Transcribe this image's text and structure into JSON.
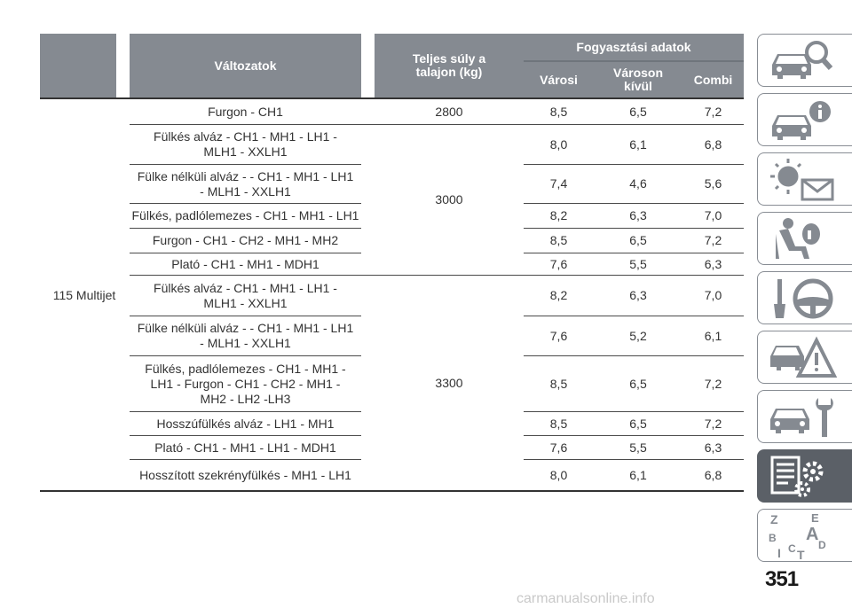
{
  "header": {
    "variants": "Változatok",
    "weight": "Teljes súly a talajon (kg)",
    "consumption": "Fogyasztási adatok",
    "urban": "Városi",
    "extra_urban": "Város­on kívül",
    "combined": "Combi"
  },
  "engine": "115 Multijet",
  "weights": [
    "2800",
    "3000",
    "3300"
  ],
  "rows": [
    {
      "variant": "Furgon - CH1",
      "urban": "8,5",
      "extra": "6,5",
      "combi": "7,2"
    },
    {
      "variant": "Fülkés alváz - CH1 - MH1 - LH1 - MLH1 - XXLH1",
      "urban": "8,0",
      "extra": "6,1",
      "combi": "6,8"
    },
    {
      "variant": "Fülke nélküli alváz - - CH1 - MH1 - LH1 - MLH1 - XXLH1",
      "urban": "7,4",
      "extra": "4,6",
      "combi": "5,6"
    },
    {
      "variant": "Fülkés, padlólemezes - CH1 - MH1 - LH1",
      "urban": "8,2",
      "extra": "6,3",
      "combi": "7,0"
    },
    {
      "variant": "Furgon - CH1 - CH2 - MH1 - MH2",
      "urban": "8,5",
      "extra": "6,5",
      "combi": "7,2"
    },
    {
      "variant": "Plató - CH1 - MH1 - MDH1",
      "urban": "7,6",
      "extra": "5,5",
      "combi": "6,3"
    },
    {
      "variant": "Fülkés alváz - CH1 - MH1 - LH1 - MLH1 - XXLH1",
      "urban": "8,2",
      "extra": "6,3",
      "combi": "7,0"
    },
    {
      "variant": "Fülke nélküli alváz - - CH1 - MH1 - LH1 - MLH1 - XXLH1",
      "urban": "7,6",
      "extra": "5,2",
      "combi": "6,1"
    },
    {
      "variant": "Fülkés, padlólemezes - CH1 - MH1 - LH1 - Furgon - CH1 - CH2 - MH1 - MH2 - LH2 -LH3",
      "urban": "8,5",
      "extra": "6,5",
      "combi": "7,2"
    },
    {
      "variant": "Hosszúfülkés alváz - LH1 - MH1",
      "urban": "8,5",
      "extra": "6,5",
      "combi": "7,2"
    },
    {
      "variant": "Plató - CH1 - MH1 - LH1 - MDH1",
      "urban": "7,6",
      "extra": "5,5",
      "combi": "6,3"
    },
    {
      "variant": "Hosszított szekrényfülkés - MH1 - LH1",
      "urban": "8,0",
      "extra": "6,1",
      "combi": "6,8"
    }
  ],
  "sidebar": {
    "tabs": [
      {
        "icon": "car-search-icon",
        "active": false
      },
      {
        "icon": "car-info-icon",
        "active": false
      },
      {
        "icon": "warning-light-message-icon",
        "active": false
      },
      {
        "icon": "seat-airbag-icon",
        "active": false
      },
      {
        "icon": "key-steering-wheel-icon",
        "active": false
      },
      {
        "icon": "car-warning-triangle-icon",
        "active": false
      },
      {
        "icon": "car-wrench-icon",
        "active": false
      },
      {
        "icon": "technical-data-icon",
        "active": true
      },
      {
        "icon": "alphabetical-index-icon",
        "active": false
      }
    ],
    "index_letters": [
      "Z",
      "E",
      "B",
      "A",
      "C",
      "D",
      "I",
      "T"
    ]
  },
  "page_number": "351",
  "watermark": "carmanualsonline.info",
  "colors": {
    "header_bg": "#858a91",
    "active_tab": "#5b6067",
    "tab_border": "#888d94"
  }
}
